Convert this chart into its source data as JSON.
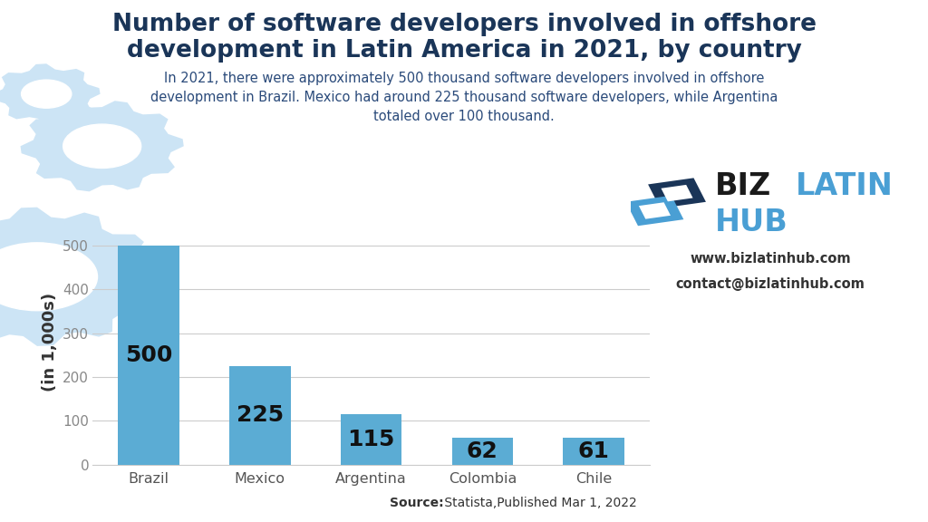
{
  "categories": [
    "Brazil",
    "Mexico",
    "Argentina",
    "Colombia",
    "Chile"
  ],
  "values": [
    500,
    225,
    115,
    62,
    61
  ],
  "bar_color": "#5BACD4",
  "background_color": "#ffffff",
  "title_line1": "Number of software developers involved in offshore",
  "title_line2": "development in Latin America in 2021, by country",
  "title_color": "#1a3558",
  "title_fontsize": 19,
  "subtitle_line1": "In 2021, there were approximately 500 thousand software developers involved in offshore",
  "subtitle_line2": "development in Brazil. Mexico had around 225 thousand software developers, while Argentina",
  "subtitle_line3": "totaled over 100 thousand.",
  "subtitle_fontsize": 10.5,
  "subtitle_color": "#2a4a7a",
  "ylabel": "(in 1,000s)",
  "ylabel_fontsize": 13,
  "ylabel_color": "#333333",
  "yticks": [
    0,
    100,
    200,
    300,
    400,
    500
  ],
  "ylim": [
    0,
    560
  ],
  "grid_color": "#cccccc",
  "bar_label_fontsize": 18,
  "bar_label_color": "#111111",
  "xtick_fontsize": 11.5,
  "ytick_fontsize": 11,
  "source_bold": "Source:",
  "source_regular": " Statista,Published Mar 1, 2022",
  "source_fontsize": 10,
  "watermark_color": "#cce4f5",
  "logo_biz_color": "#1a1a1a",
  "logo_latin_color": "#4a9fd4",
  "logo_hub_color": "#4a9fd4",
  "logo_dark_blue": "#1a3558",
  "website_text": "www.bizlatinhub.com",
  "contact_text": "contact@bizlatinhub.com",
  "info_fontsize": 10.5
}
